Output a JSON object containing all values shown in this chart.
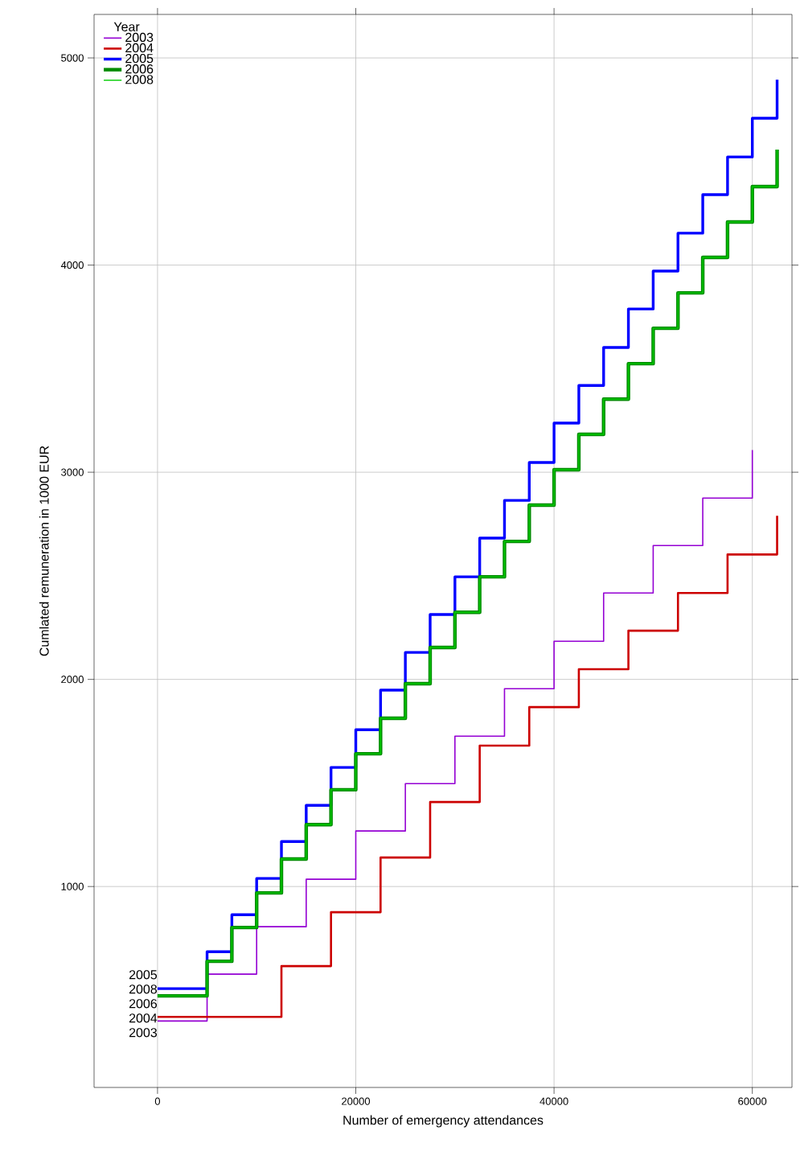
{
  "chart_data": {
    "type": "step",
    "xlabel": "Number of emergency attendances",
    "ylabel": "Cumlated remuneration in 1000 EUR",
    "legend_title": "Year",
    "legend": "top left",
    "grid": true,
    "xlim": [
      -6400,
      64000
    ],
    "ylim": [
      30,
      5210
    ],
    "xticks": [
      0,
      20000,
      40000,
      60000
    ],
    "yticks": [
      1000,
      2000,
      3000,
      4000,
      5000
    ],
    "series": [
      {
        "name": "2003",
        "color": "#9400d3",
        "x": [
          0,
          5000,
          10000,
          15000,
          20000,
          25000,
          30000,
          35000,
          40000,
          45000,
          50000,
          55000,
          60000
        ],
        "values": [
          351,
          577,
          806,
          1035,
          1268,
          1497,
          1726,
          1955,
          2184,
          2417,
          2646,
          2875,
          3107
        ]
      },
      {
        "name": "2004",
        "color": "#cc0000",
        "x": [
          0,
          12500,
          17500,
          22500,
          27500,
          32500,
          37500,
          42500,
          47500,
          52500,
          57500,
          62500
        ],
        "values": [
          371,
          616,
          876,
          1140,
          1408,
          1680,
          1866,
          2049,
          2235,
          2417,
          2603,
          2790
        ]
      },
      {
        "name": "2005",
        "color": "#0000ff",
        "x": [
          0,
          5000,
          7500,
          10000,
          12500,
          15000,
          17500,
          20000,
          22500,
          25000,
          27500,
          30000,
          32500,
          35000,
          37500,
          40000,
          42500,
          45000,
          47500,
          50000,
          52500,
          55000,
          57500,
          60000,
          62500
        ],
        "values": [
          507,
          685,
          864,
          1039,
          1217,
          1392,
          1575,
          1757,
          1948,
          2130,
          2313,
          2495,
          2682,
          2864,
          3047,
          3237,
          3419,
          3602,
          3788,
          3971,
          4154,
          4340,
          4522,
          4709,
          4895
        ]
      },
      {
        "name": "2006",
        "color": "#008b00",
        "x": [
          0,
          5000,
          7500,
          10000,
          12500,
          15000,
          17500,
          20000,
          22500,
          25000,
          27500,
          30000,
          32500,
          35000,
          37500,
          40000,
          42500,
          45000,
          47500,
          50000,
          52500,
          55000,
          57500,
          60000,
          62500
        ],
        "values": [
          472,
          639,
          802,
          969,
          1133,
          1299,
          1467,
          1641,
          1812,
          1979,
          2154,
          2324,
          2495,
          2666,
          2841,
          3012,
          3183,
          3353,
          3524,
          3695,
          3866,
          4037,
          4208,
          4379,
          4557
        ]
      },
      {
        "name": "2008",
        "color": "#00cd00",
        "x": [
          0,
          5000,
          7500,
          10000,
          12500,
          15000,
          17500,
          20000,
          22500,
          25000,
          27500,
          30000,
          32500,
          35000,
          37500,
          40000,
          42500,
          45000,
          47500,
          50000,
          52500,
          55000,
          57500,
          60000,
          62500
        ],
        "values": [
          472,
          639,
          802,
          969,
          1133,
          1299,
          1467,
          1641,
          1812,
          1979,
          2154,
          2324,
          2495,
          2666,
          2841,
          3012,
          3183,
          3353,
          3524,
          3695,
          3866,
          4037,
          4208,
          4379,
          4557
        ]
      }
    ]
  }
}
